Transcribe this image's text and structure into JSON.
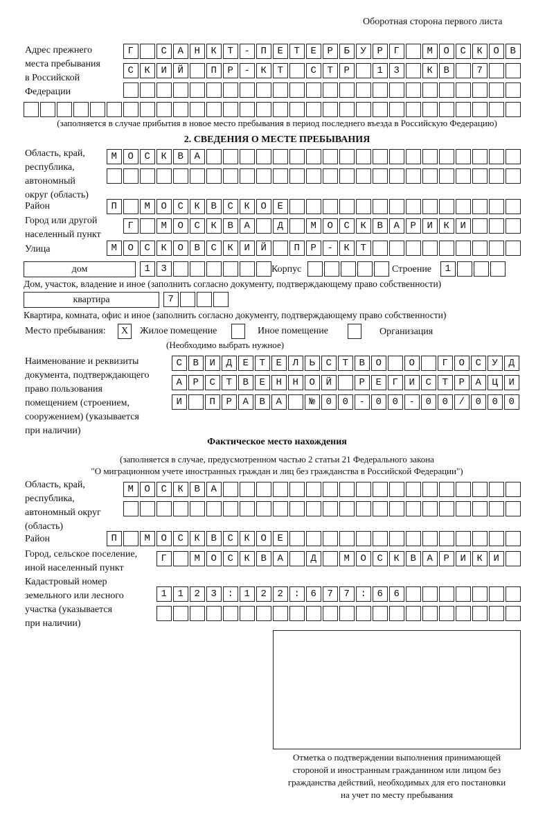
{
  "header": {
    "page_side": "Оборотная сторона первого листа"
  },
  "previous_address": {
    "label": [
      "Адрес прежнего",
      "места пребывания",
      "в Российской",
      "Федерации"
    ],
    "rows": [
      "Г САНКТ-ПЕТЕРБУРГ МОСКОВ",
      "СКИЙ ПР-КТ СТР 13 КВ 7  ",
      "                        ",
      "                              "
    ],
    "note": "(заполняется в случае прибытия в новое место пребывания в период последнего въезда в Российскую Федерацию)"
  },
  "section2": {
    "title": "2. СВЕДЕНИЯ О МЕСТЕ ПРЕБЫВАНИЯ",
    "region": {
      "label": [
        "Область, край,",
        "республика,",
        "автономный",
        "округ (область)"
      ],
      "rows": [
        "МОСКВА                   ",
        "                         "
      ]
    },
    "district": {
      "label": "Район",
      "row": "П МОСКВСКОЕ              "
    },
    "city": {
      "label": [
        "Город или другой",
        "населенный пункт"
      ],
      "row": "Г МОСКВА Д МОСКВАРИКИ   "
    },
    "street": {
      "label": "Улица",
      "row": "МОСКОВСКИЙ ПР-КТ         "
    },
    "house": {
      "type": "дом",
      "row": "13      ",
      "korpus_label": "Корпус",
      "korpus_row": "     ",
      "building_label": "Строение",
      "building_row": "1   ",
      "note": "Дом, участок, владение и иное (заполнить согласно документу, подтверждающему право собственности)"
    },
    "apartment": {
      "type": "квартира",
      "row": "7   ",
      "note": "Квартира, комната, офис и иное (заполнить согласно документу, подтверждающему право собственности)"
    },
    "place_type": {
      "label": "Место пребывания:",
      "options": [
        {
          "label": "Жилое помещение",
          "checked": "X"
        },
        {
          "label": "Иное помещение",
          "checked": ""
        },
        {
          "label": "Организация",
          "checked": ""
        }
      ],
      "hint": "(Необходимо выбрать нужное)"
    },
    "document": {
      "label": [
        "Наименование и реквизиты",
        "документа, подтверждающего",
        "право пользования",
        "помещением (строением,",
        "сооружением) (указывается",
        "при наличии)"
      ],
      "rows": [
        "СВИДЕТЕЛЬСТВО О ГОСУД",
        "АРСТВЕННОЙ РЕГИСТРАЦИ",
        "И ПРАВА №00-00-00/000"
      ]
    }
  },
  "actual_location": {
    "title": "Фактическое место нахождения",
    "note": [
      "(заполняется в случае, предусмотренном частью 2 статьи 21 Федерального закона",
      "\"О миграционном учете иностранных граждан и лиц без гражданства в Российской Федерации\")"
    ],
    "region": {
      "label": [
        "Область, край,",
        "республика,",
        "автономный округ",
        "(область)"
      ],
      "rows": [
        "МОСКВА                  ",
        "                        "
      ]
    },
    "district": {
      "label": "Район",
      "row": "П МОСКВСКОЕ              "
    },
    "city": {
      "label": [
        "Город, сельское поселение,",
        "иной населенный пункт"
      ],
      "row": "Г МОСКВА Д МОСКВАРИКИ "
    },
    "cadastral": {
      "label": [
        "Кадастровый номер",
        "земельного или лесного",
        "участка (указывается",
        "при наличии)"
      ],
      "rows": [
        "1123:122:677:66       ",
        "                      "
      ]
    }
  },
  "confirmation": {
    "caption": [
      "Отметка о подтверждении выполнения принимающей",
      "стороной и иностранным гражданином или лицом без",
      "гражданства действий, необходимых для его постановки",
      "на учет по месту пребывания"
    ]
  }
}
